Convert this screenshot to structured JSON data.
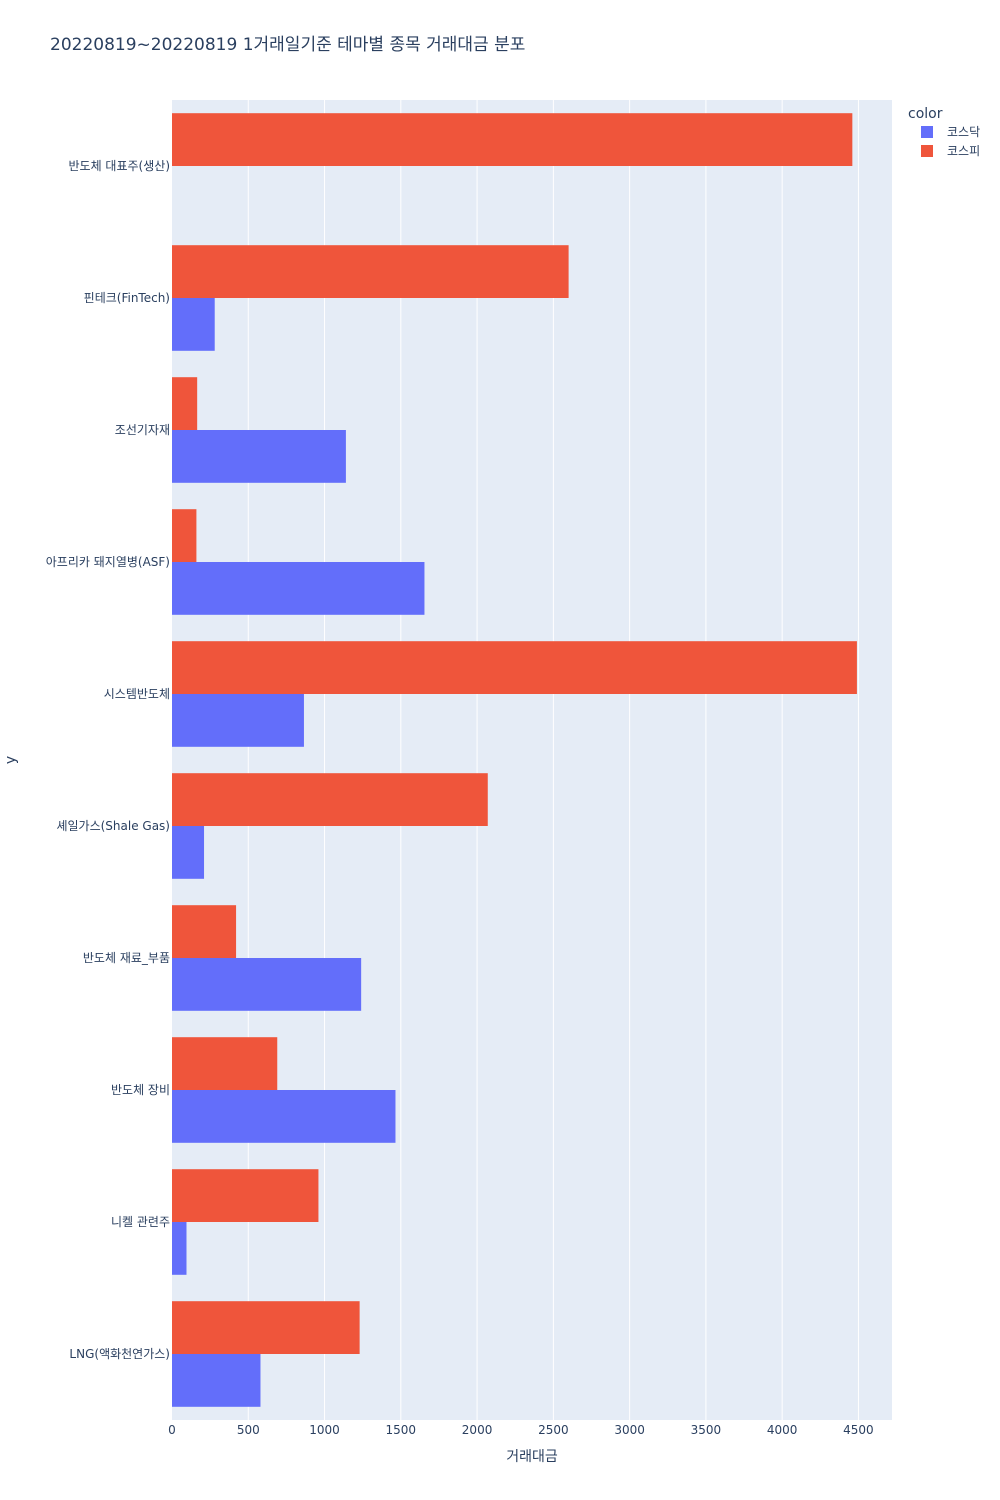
{
  "chart_data": {
    "type": "bar",
    "orientation": "horizontal",
    "barmode": "group",
    "title": "20220819~20220819 1거래일기준 테마별 종목 거래대금 분포",
    "xlabel": "거래대금",
    "ylabel": "y",
    "xlim": [
      0,
      4720
    ],
    "xticks": [
      0,
      500,
      1000,
      1500,
      2000,
      2500,
      3000,
      3500,
      4000,
      4500
    ],
    "grid": true,
    "legend": {
      "title": "color",
      "position": "top-right"
    },
    "categories": [
      "반도체 대표주(생산)",
      "핀테크(FinTech)",
      "조선기자재",
      "아프리카 돼지열병(ASF)",
      "시스템반도체",
      "셰일가스(Shale Gas)",
      "반도체 재료_부품",
      "반도체 장비",
      "니켈 관련주",
      "LNG(액화천연가스)"
    ],
    "series": [
      {
        "name": "코스닥",
        "color": "#636efa",
        "values": [
          0,
          280,
          1140,
          1655,
          865,
          210,
          1240,
          1465,
          95,
          580
        ]
      },
      {
        "name": "코스피",
        "color": "#ef553b",
        "values": [
          4460,
          2600,
          165,
          160,
          4490,
          2070,
          420,
          690,
          960,
          1230
        ]
      }
    ]
  }
}
